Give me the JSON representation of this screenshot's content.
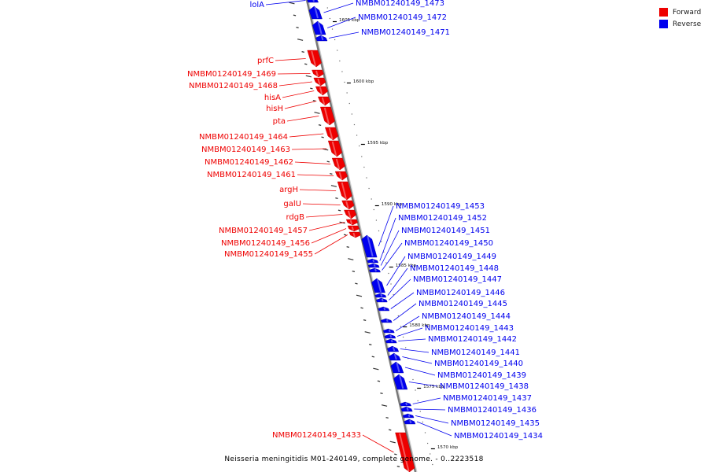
{
  "title": "Neisseria meningitidis M01-240149, complete genome. - 0..2223518",
  "legend": [
    {
      "label": "Forward",
      "color": "#ee0000"
    },
    {
      "label": "Reverse",
      "color": "#0000ee"
    }
  ],
  "colors": {
    "forward": "#ee0000",
    "reverse": "#0000ee",
    "backbone": "#777777"
  },
  "ticks": [
    "1605 kbp",
    "1600 kbp",
    "1595 kbp",
    "1590 kbp",
    "1585 kbp",
    "1580 kbp",
    "1575 kbp",
    "1570 kbp"
  ],
  "features": [
    {
      "label": "lolA",
      "strand": "reverse"
    },
    {
      "label": "NMBM01240149_1473",
      "strand": "reverse"
    },
    {
      "label": "NMBM01240149_1472",
      "strand": "reverse"
    },
    {
      "label": "NMBM01240149_1471",
      "strand": "reverse"
    },
    {
      "label": "prfC",
      "strand": "forward"
    },
    {
      "label": "NMBM01240149_1469",
      "strand": "forward"
    },
    {
      "label": "NMBM01240149_1468",
      "strand": "forward"
    },
    {
      "label": "hisA",
      "strand": "forward"
    },
    {
      "label": "hisH",
      "strand": "forward"
    },
    {
      "label": "pta",
      "strand": "forward"
    },
    {
      "label": "NMBM01240149_1464",
      "strand": "forward"
    },
    {
      "label": "NMBM01240149_1463",
      "strand": "forward"
    },
    {
      "label": "NMBM01240149_1462",
      "strand": "forward"
    },
    {
      "label": "NMBM01240149_1461",
      "strand": "forward"
    },
    {
      "label": "argH",
      "strand": "forward"
    },
    {
      "label": "galU",
      "strand": "forward"
    },
    {
      "label": "rdgB",
      "strand": "forward"
    },
    {
      "label": "NMBM01240149_1457",
      "strand": "forward"
    },
    {
      "label": "NMBM01240149_1456",
      "strand": "forward"
    },
    {
      "label": "NMBM01240149_1455",
      "strand": "forward"
    },
    {
      "label": "NMBM01240149_1453",
      "strand": "reverse"
    },
    {
      "label": "NMBM01240149_1452",
      "strand": "reverse"
    },
    {
      "label": "NMBM01240149_1451",
      "strand": "reverse"
    },
    {
      "label": "NMBM01240149_1450",
      "strand": "reverse"
    },
    {
      "label": "NMBM01240149_1449",
      "strand": "reverse"
    },
    {
      "label": "NMBM01240149_1448",
      "strand": "reverse"
    },
    {
      "label": "NMBM01240149_1447",
      "strand": "reverse"
    },
    {
      "label": "NMBM01240149_1446",
      "strand": "reverse"
    },
    {
      "label": "NMBM01240149_1445",
      "strand": "reverse"
    },
    {
      "label": "NMBM01240149_1444",
      "strand": "reverse"
    },
    {
      "label": "NMBM01240149_1443",
      "strand": "reverse"
    },
    {
      "label": "NMBM01240149_1442",
      "strand": "reverse"
    },
    {
      "label": "NMBM01240149_1441",
      "strand": "reverse"
    },
    {
      "label": "NMBM01240149_1440",
      "strand": "reverse"
    },
    {
      "label": "NMBM01240149_1439",
      "strand": "reverse"
    },
    {
      "label": "NMBM01240149_1438",
      "strand": "reverse"
    },
    {
      "label": "NMBM01240149_1437",
      "strand": "reverse"
    },
    {
      "label": "NMBM01240149_1436",
      "strand": "reverse"
    },
    {
      "label": "NMBM01240149_1435",
      "strand": "reverse"
    },
    {
      "label": "NMBM01240149_1434",
      "strand": "reverse"
    },
    {
      "label": "NMBM01240149_1433",
      "strand": "forward"
    }
  ]
}
